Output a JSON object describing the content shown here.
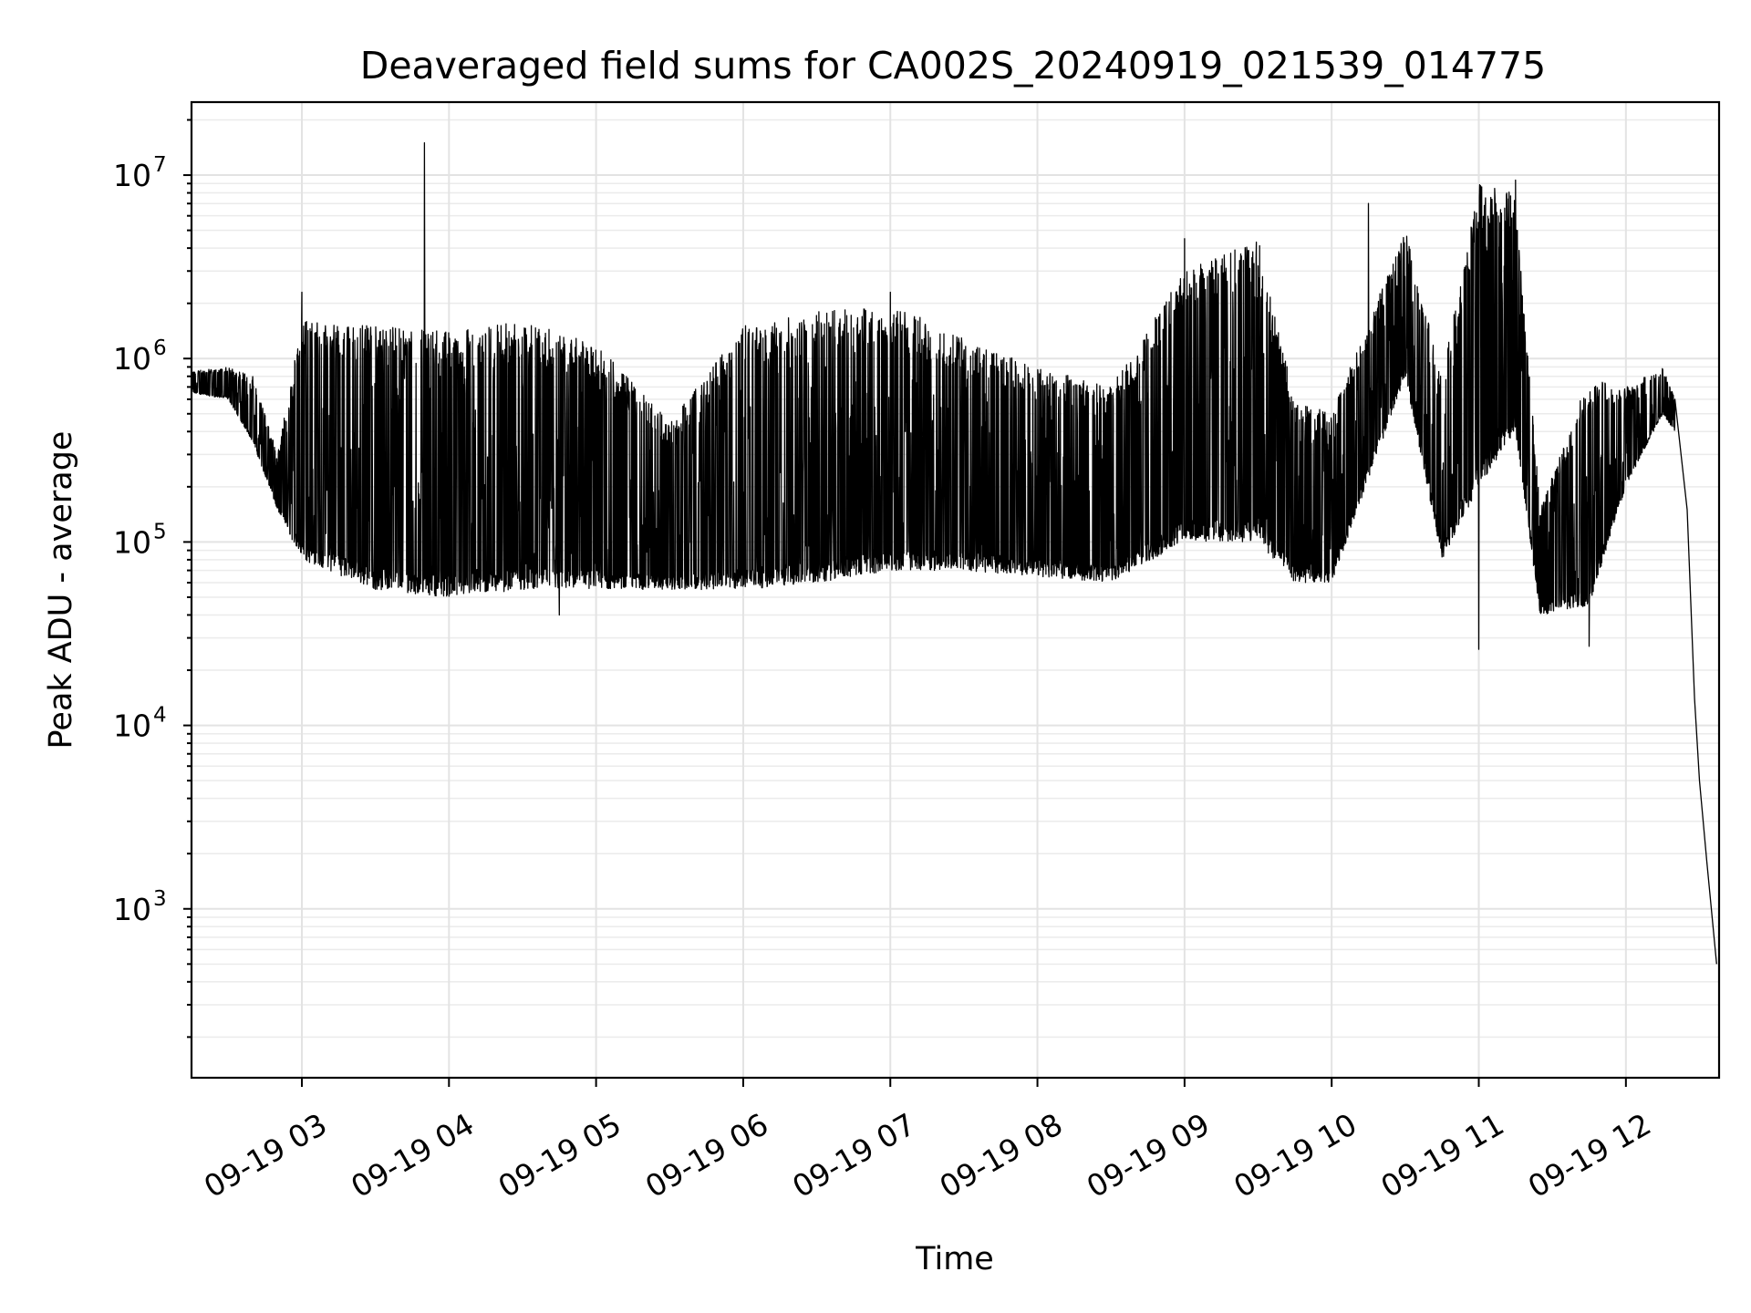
{
  "chart_data": {
    "type": "line",
    "title": "Deaveraged field sums for CA002S_20240919_021539_014775",
    "xlabel": "Time",
    "ylabel": "Peak ADU - average",
    "y_scale": "log",
    "grid": true,
    "grid_minor": true,
    "xlim": [
      "2024-09-19 02:15",
      "2024-09-19 12:38"
    ],
    "ylim": [
      120,
      25000000
    ],
    "x_ticks": [
      {
        "time": "2024-09-19 03:00",
        "label": "09-19 03"
      },
      {
        "time": "2024-09-19 04:00",
        "label": "09-19 04"
      },
      {
        "time": "2024-09-19 05:00",
        "label": "09-19 05"
      },
      {
        "time": "2024-09-19 06:00",
        "label": "09-19 06"
      },
      {
        "time": "2024-09-19 07:00",
        "label": "09-19 07"
      },
      {
        "time": "2024-09-19 08:00",
        "label": "09-19 08"
      },
      {
        "time": "2024-09-19 09:00",
        "label": "09-19 09"
      },
      {
        "time": "2024-09-19 10:00",
        "label": "09-19 10"
      },
      {
        "time": "2024-09-19 11:00",
        "label": "09-19 11"
      },
      {
        "time": "2024-09-19 12:00",
        "label": "09-19 12"
      }
    ],
    "y_ticks": [
      {
        "value": 1000,
        "base": "10",
        "exp": "3"
      },
      {
        "value": 10000,
        "base": "10",
        "exp": "4"
      },
      {
        "value": 100000,
        "base": "10",
        "exp": "5"
      },
      {
        "value": 1000000,
        "base": "10",
        "exp": "6"
      },
      {
        "value": 10000000,
        "base": "10",
        "exp": "7"
      }
    ],
    "series": [
      {
        "color": "#000000",
        "envelope": [
          {
            "t": "2024-09-19 02:15",
            "lo": 650000,
            "hi": 850000
          },
          {
            "t": "2024-09-19 02:30",
            "lo": 600000,
            "hi": 900000
          },
          {
            "t": "2024-09-19 02:40",
            "lo": 350000,
            "hi": 800000
          },
          {
            "t": "2024-09-19 02:50",
            "lo": 150000,
            "hi": 300000
          },
          {
            "t": "2024-09-19 03:00",
            "lo": 80000,
            "hi": 1600000
          },
          {
            "t": "2024-09-19 03:30",
            "lo": 55000,
            "hi": 1500000
          },
          {
            "t": "2024-09-19 04:00",
            "lo": 50000,
            "hi": 1400000
          },
          {
            "t": "2024-09-19 04:30",
            "lo": 55000,
            "hi": 1600000
          },
          {
            "t": "2024-09-19 05:00",
            "lo": 55000,
            "hi": 1200000
          },
          {
            "t": "2024-09-19 05:30",
            "lo": 55000,
            "hi": 450000
          },
          {
            "t": "2024-09-19 06:00",
            "lo": 55000,
            "hi": 1500000
          },
          {
            "t": "2024-09-19 06:30",
            "lo": 60000,
            "hi": 1800000
          },
          {
            "t": "2024-09-19 07:00",
            "lo": 70000,
            "hi": 2000000
          },
          {
            "t": "2024-09-19 07:30",
            "lo": 70000,
            "hi": 1300000
          },
          {
            "t": "2024-09-19 08:00",
            "lo": 65000,
            "hi": 900000
          },
          {
            "t": "2024-09-19 08:30",
            "lo": 60000,
            "hi": 700000
          },
          {
            "t": "2024-09-19 09:00",
            "lo": 100000,
            "hi": 3000000
          },
          {
            "t": "2024-09-19 09:30",
            "lo": 100000,
            "hi": 4500000
          },
          {
            "t": "2024-09-19 09:45",
            "lo": 60000,
            "hi": 600000
          },
          {
            "t": "2024-09-19 10:00",
            "lo": 60000,
            "hi": 500000
          },
          {
            "t": "2024-09-19 10:30",
            "lo": 800000,
            "hi": 5000000
          },
          {
            "t": "2024-09-19 10:45",
            "lo": 80000,
            "hi": 800000
          },
          {
            "t": "2024-09-19 11:00",
            "lo": 200000,
            "hi": 9000000
          },
          {
            "t": "2024-09-19 11:15",
            "lo": 400000,
            "hi": 8000000
          },
          {
            "t": "2024-09-19 11:25",
            "lo": 40000,
            "hi": 150000
          },
          {
            "t": "2024-09-19 11:45",
            "lo": 45000,
            "hi": 800000
          },
          {
            "t": "2024-09-19 12:00",
            "lo": 200000,
            "hi": 700000
          },
          {
            "t": "2024-09-19 12:15",
            "lo": 500000,
            "hi": 900000
          },
          {
            "t": "2024-09-19 12:20",
            "lo": 400000,
            "hi": 600000
          }
        ],
        "spikes": [
          {
            "t": "2024-09-19 03:50",
            "value": 15000000
          },
          {
            "t": "2024-09-19 03:00",
            "value": 2300000
          },
          {
            "t": "2024-09-19 07:00",
            "value": 2300000
          },
          {
            "t": "2024-09-19 09:00",
            "value": 4500000
          },
          {
            "t": "2024-09-19 10:15",
            "value": 7000000
          },
          {
            "t": "2024-09-19 11:00",
            "value": 9800000
          },
          {
            "t": "2024-09-19 11:15",
            "value": 9400000
          },
          {
            "t": "2024-09-19 11:00",
            "value": 26000
          },
          {
            "t": "2024-09-19 11:45",
            "value": 27000
          },
          {
            "t": "2024-09-19 04:45",
            "value": 40000
          }
        ],
        "tail": [
          {
            "t": "2024-09-19 12:20",
            "value": 600000
          },
          {
            "t": "2024-09-19 12:25",
            "value": 150000
          },
          {
            "t": "2024-09-19 12:28",
            "value": 14000
          },
          {
            "t": "2024-09-19 12:30",
            "value": 5000
          },
          {
            "t": "2024-09-19 12:33",
            "value": 1800
          },
          {
            "t": "2024-09-19 12:37",
            "value": 500
          }
        ]
      }
    ]
  }
}
